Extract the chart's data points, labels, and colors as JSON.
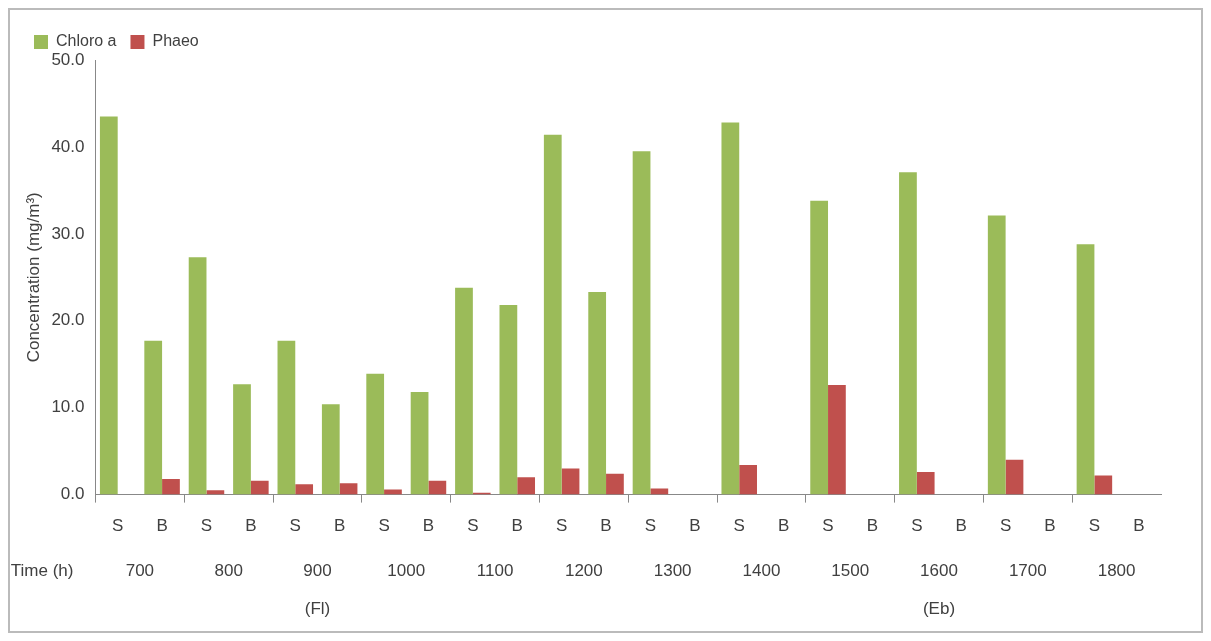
{
  "chart_data": {
    "type": "bar",
    "ylabel": "Concentration (mg/m³)",
    "xlabel": "Time (h)",
    "categories": [
      "S",
      "B",
      "S",
      "B",
      "S",
      "B",
      "S",
      "B",
      "S",
      "B",
      "S",
      "B",
      "S",
      "B",
      "S",
      "B",
      "S",
      "B",
      "S",
      "B",
      "S",
      "B",
      "S",
      "B"
    ],
    "series": [
      {
        "name": "Chloro a",
        "color": "#9bbb59",
        "values": [
          43.5,
          17.7,
          27.3,
          12.7,
          17.7,
          10.4,
          13.9,
          11.8,
          23.8,
          21.8,
          41.4,
          23.3,
          39.5,
          null,
          42.8,
          null,
          33.8,
          null,
          37.1,
          null,
          32.1,
          null,
          28.8,
          null
        ]
      },
      {
        "name": "Phaeo",
        "color": "#c0504d",
        "values": [
          null,
          1.8,
          0.5,
          1.6,
          1.2,
          1.3,
          0.6,
          1.6,
          0.2,
          2.0,
          3.0,
          2.4,
          0.7,
          null,
          3.4,
          null,
          12.6,
          null,
          2.6,
          null,
          4.0,
          null,
          2.2,
          null
        ]
      }
    ],
    "ylim": [
      0,
      50
    ],
    "yticks": [
      {
        "value": 0,
        "label": "0.0"
      },
      {
        "value": 10,
        "label": "10.0"
      },
      {
        "value": 20,
        "label": "20.0"
      },
      {
        "value": 30,
        "label": "30.0"
      },
      {
        "value": 40,
        "label": "40.0"
      },
      {
        "value": 50,
        "label": "50.0"
      }
    ],
    "grid": false,
    "legend": "top left",
    "annotations": [
      "700",
      "800",
      "900",
      "1000",
      "1100",
      "1200",
      "1300",
      "1400",
      "1500",
      "1600",
      "1700",
      "1800",
      "(Fl)",
      "(Eb)"
    ]
  }
}
